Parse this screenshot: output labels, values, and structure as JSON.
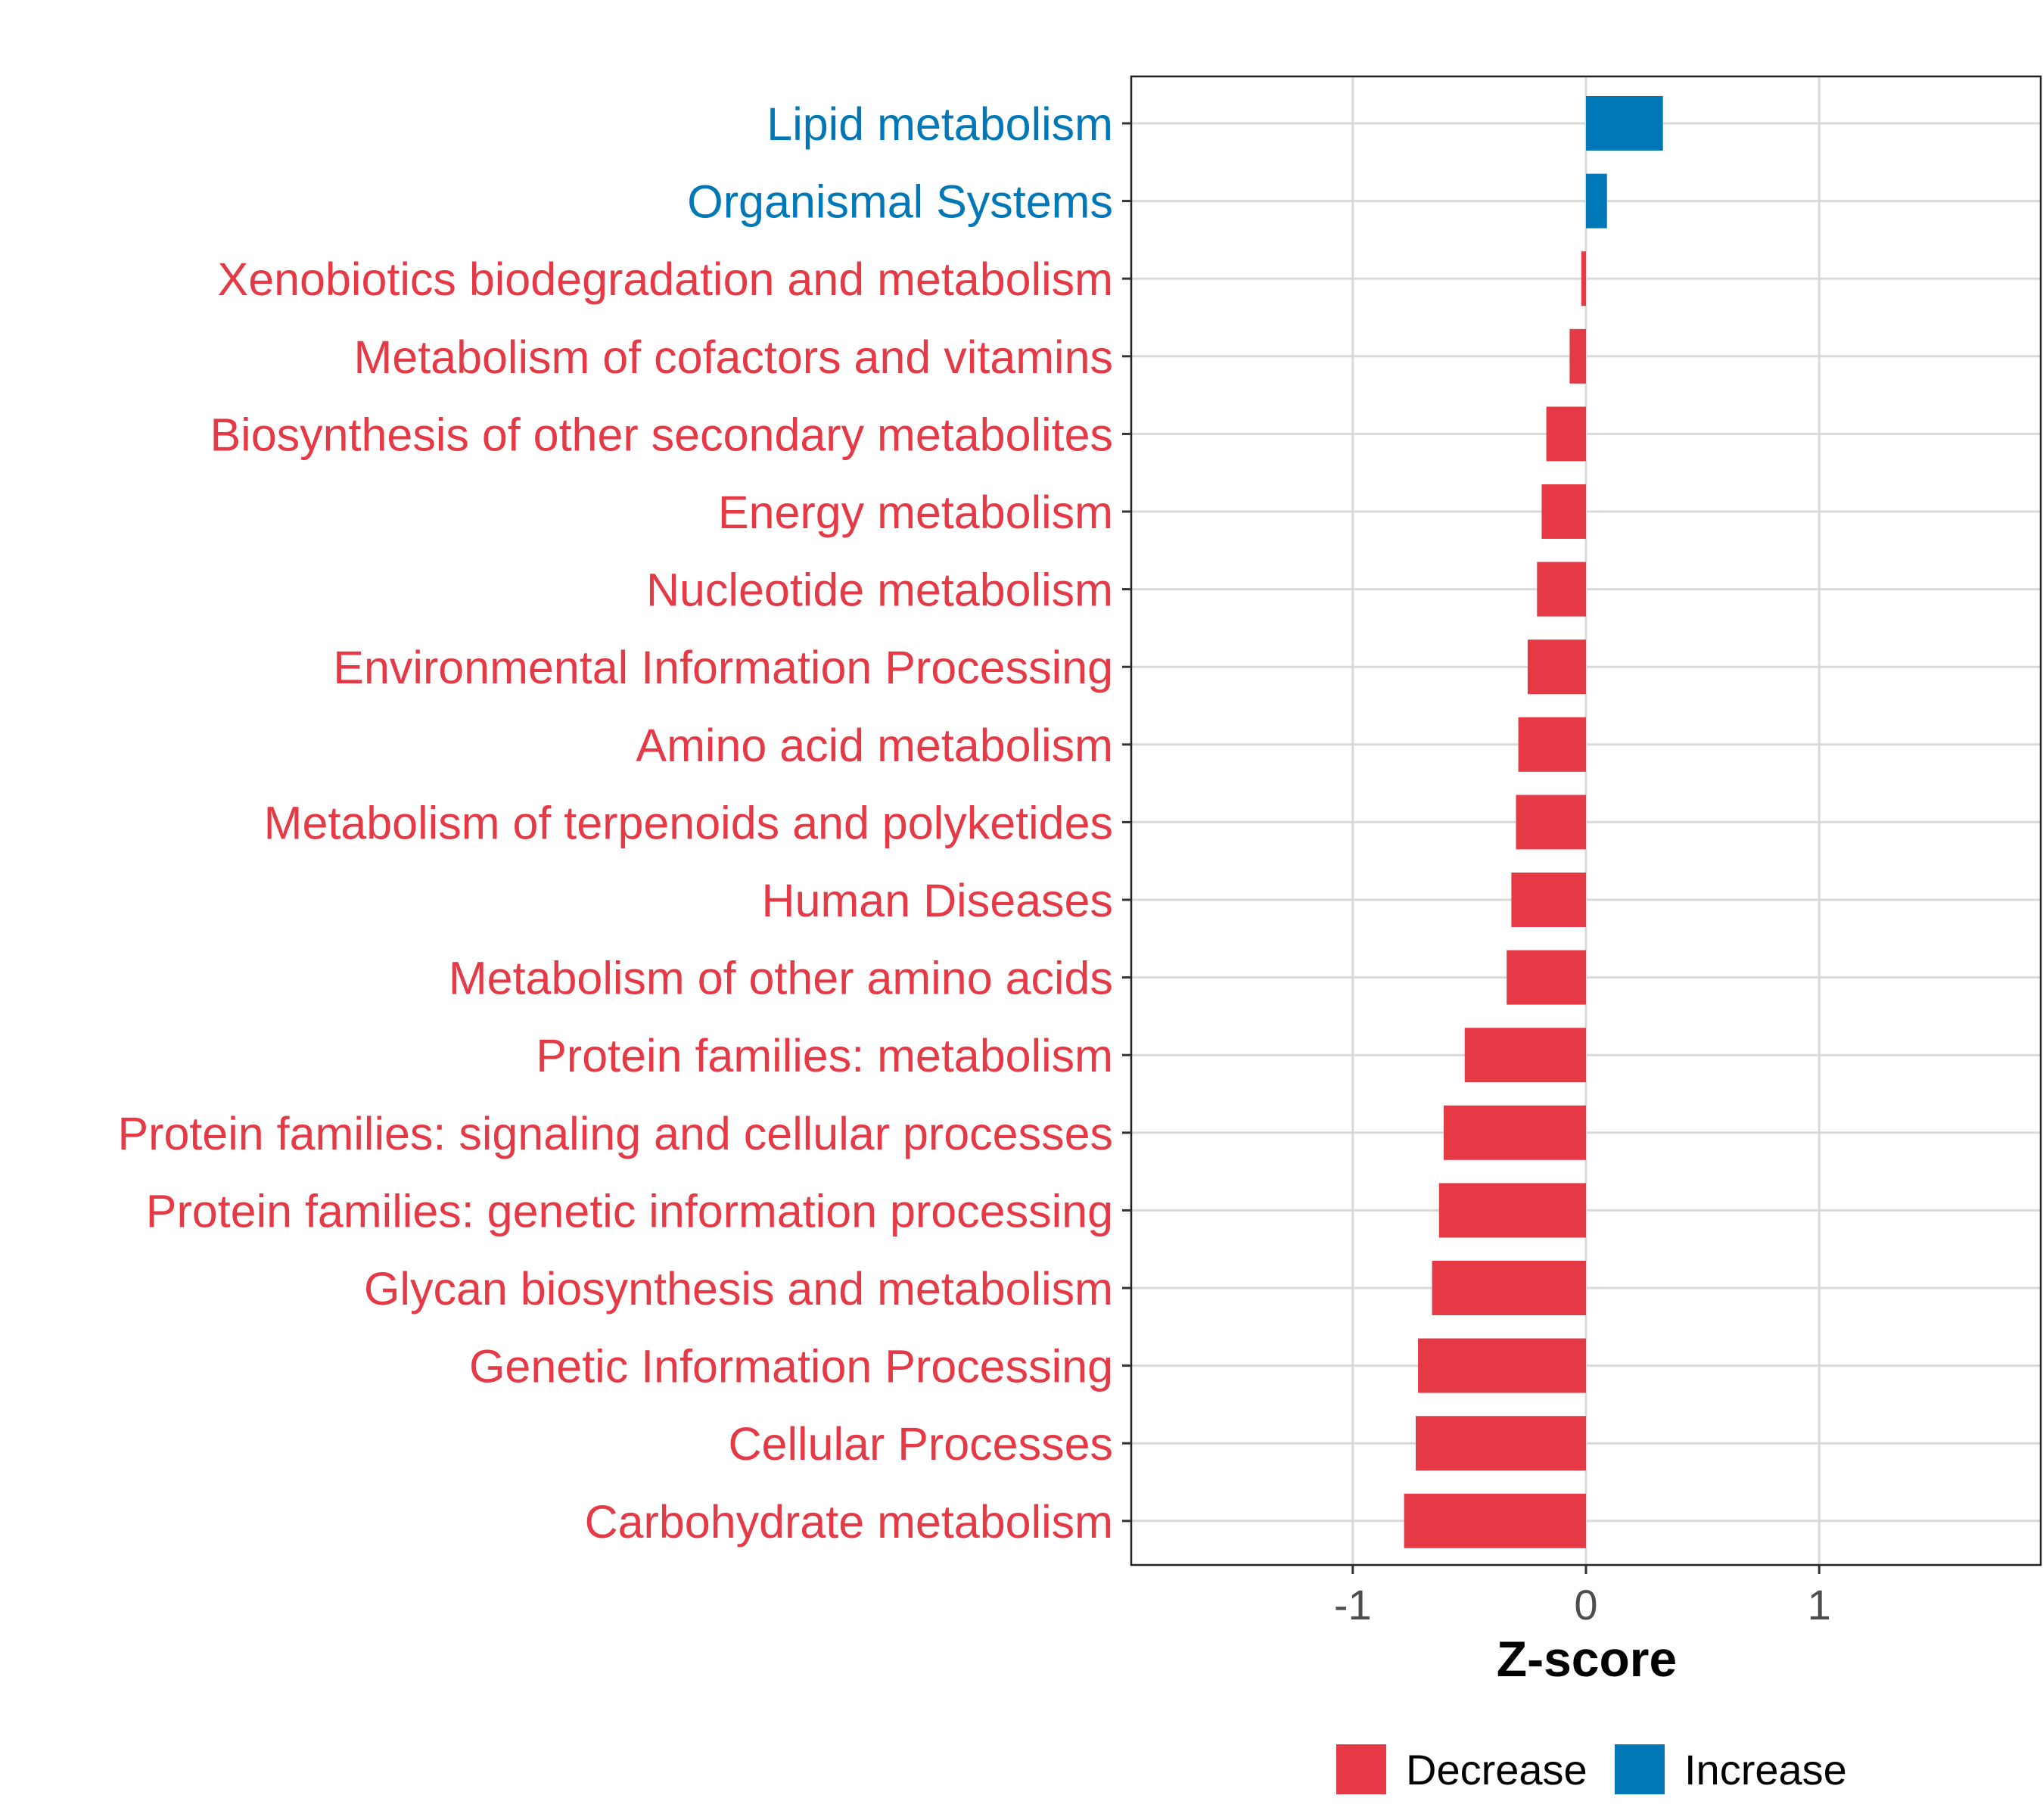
{
  "chart_data": {
    "type": "bar",
    "orientation": "horizontal",
    "xlabel": "Z-score",
    "ylabel": "",
    "xlim": [
      -1.95,
      1.95
    ],
    "xticks": [
      -1,
      0,
      1
    ],
    "xtick_labels": [
      "-1",
      "0",
      "1"
    ],
    "grid": true,
    "legend_position": "bottom",
    "categories": [
      "Lipid metabolism",
      "Organismal Systems",
      "Xenobiotics biodegradation and metabolism",
      "Metabolism of cofactors and vitamins",
      "Biosynthesis of other secondary metabolites",
      "Energy metabolism",
      "Nucleotide metabolism",
      "Environmental Information Processing",
      "Amino acid metabolism",
      "Metabolism of terpenoids and polyketides",
      "Human Diseases",
      "Metabolism of other amino acids",
      "Protein families: metabolism",
      "Protein families: signaling and cellular processes",
      "Protein families: genetic information processing",
      "Glycan biosynthesis and metabolism",
      "Genetic Information Processing",
      "Cellular Processes",
      "Carbohydrate metabolism"
    ],
    "values": [
      0.33,
      0.09,
      -0.02,
      -0.07,
      -0.17,
      -0.19,
      -0.21,
      -0.25,
      -0.29,
      -0.3,
      -0.32,
      -0.34,
      -0.52,
      -0.61,
      -0.63,
      -0.66,
      -0.72,
      -0.73,
      -0.78
    ],
    "groups": [
      "Increase",
      "Increase",
      "Decrease",
      "Decrease",
      "Decrease",
      "Decrease",
      "Decrease",
      "Decrease",
      "Decrease",
      "Decrease",
      "Decrease",
      "Decrease",
      "Decrease",
      "Decrease",
      "Decrease",
      "Decrease",
      "Decrease",
      "Decrease",
      "Decrease"
    ],
    "legend": [
      {
        "name": "Decrease",
        "color": "#E63946"
      },
      {
        "name": "Increase",
        "color": "#0077B6"
      }
    ]
  }
}
